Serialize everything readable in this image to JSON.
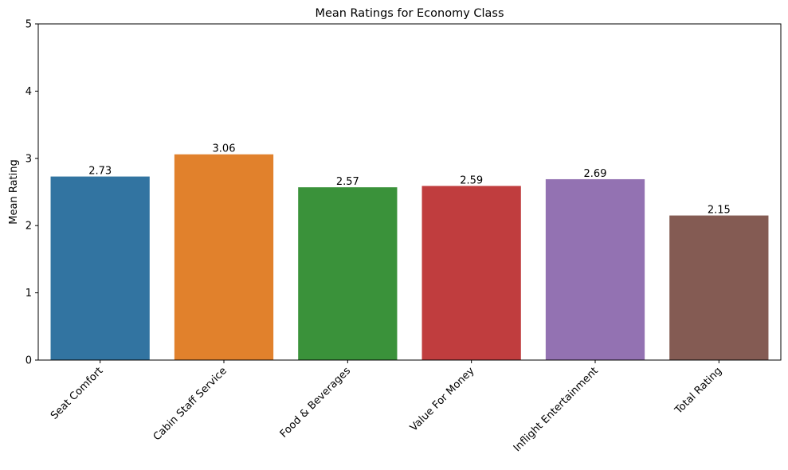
{
  "chart_data": {
    "type": "bar",
    "title": "Mean Ratings for Economy Class",
    "xlabel": "",
    "ylabel": "Mean Rating",
    "categories": [
      "Seat Comfort",
      "Cabin Staff Service",
      "Food & Beverages",
      "Value For Money",
      "Inflight Entertainment",
      "Total Rating"
    ],
    "values": [
      2.73,
      3.06,
      2.57,
      2.59,
      2.69,
      2.15
    ],
    "data_labels": [
      "2.73",
      "3.06",
      "2.57",
      "2.59",
      "2.69",
      "2.15"
    ],
    "colors": [
      "#3274a1",
      "#e1812c",
      "#3a923a",
      "#c03d3e",
      "#9372b2",
      "#845b53"
    ],
    "ylim": [
      0,
      5
    ],
    "yticks": [
      "0",
      "1",
      "2",
      "3",
      "4",
      "5"
    ],
    "grid": false,
    "legend": "none"
  }
}
